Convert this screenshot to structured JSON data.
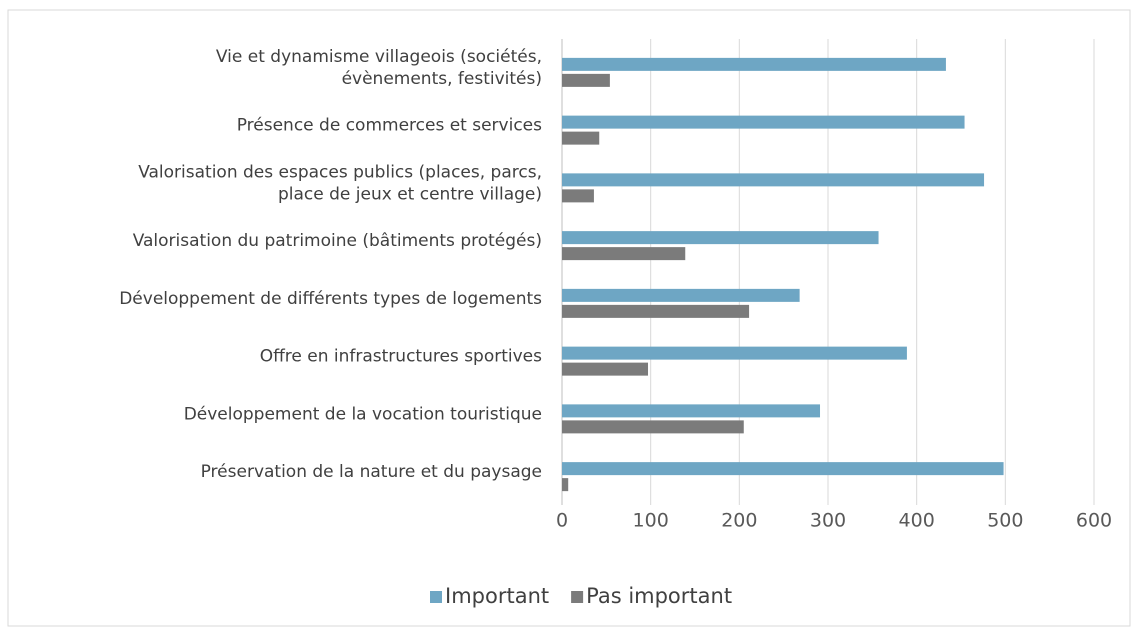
{
  "chart_data": {
    "type": "bar",
    "orientation": "horizontal",
    "categories": [
      [
        "Vie et dynamisme villageois (sociétés,",
        "évènements, festivités)"
      ],
      [
        "Présence de commerces et services"
      ],
      [
        "Valorisation des espaces publics (places, parcs,",
        "place de jeux et centre village)"
      ],
      [
        "Valorisation du patrimoine (bâtiments protégés)"
      ],
      [
        "Développement de différents types de logements"
      ],
      [
        "Offre en infrastructures sportives"
      ],
      [
        "Développement de la vocation touristique"
      ],
      [
        "Préservation de la nature et du paysage"
      ]
    ],
    "series": [
      {
        "name": "Important",
        "color": "#6ea6c4",
        "values": [
          433,
          454,
          476,
          357,
          268,
          389,
          291,
          498
        ]
      },
      {
        "name": "Pas important",
        "color": "#7b7b7b",
        "values": [
          54,
          42,
          36,
          139,
          211,
          97,
          205,
          7
        ]
      }
    ],
    "xlim": [
      0,
      600
    ],
    "xticks": [
      0,
      100,
      200,
      300,
      400,
      500,
      600
    ],
    "grid": true,
    "legend": "bottom"
  }
}
